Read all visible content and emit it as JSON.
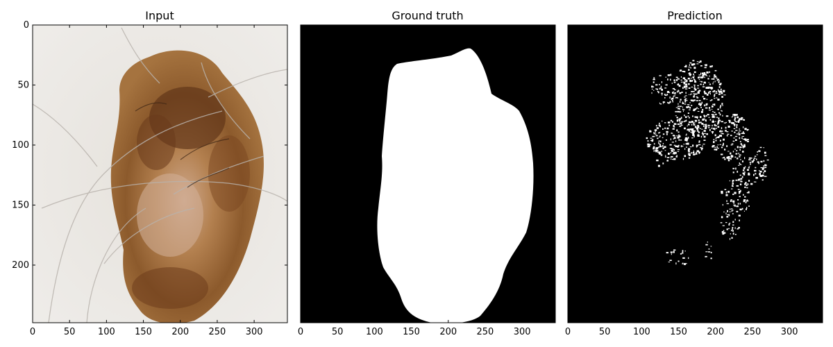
{
  "panels": [
    {
      "id": "input",
      "title": "Input",
      "kind": "photo",
      "show_yaxis": true
    },
    {
      "id": "ground-truth",
      "title": "Ground truth",
      "kind": "mask",
      "show_yaxis": false
    },
    {
      "id": "prediction",
      "title": "Prediction",
      "kind": "prediction",
      "show_yaxis": false
    }
  ],
  "axes": {
    "xlim": [
      0,
      345
    ],
    "ylim": [
      0,
      248
    ],
    "xticks": [
      "0",
      "50",
      "100",
      "150",
      "200",
      "250",
      "300"
    ],
    "yticks": [
      "0",
      "50",
      "100",
      "150",
      "200"
    ]
  },
  "colors": {
    "background": "#ffffff",
    "skin": "#e9e6e1",
    "lesion_light": "#b07a45",
    "lesion_mid": "#9a6232",
    "lesion_dark": "#5a3015",
    "lesion_center": "#c9a48a",
    "mask_bg": "#000000",
    "mask_fg": "#ffffff"
  }
}
